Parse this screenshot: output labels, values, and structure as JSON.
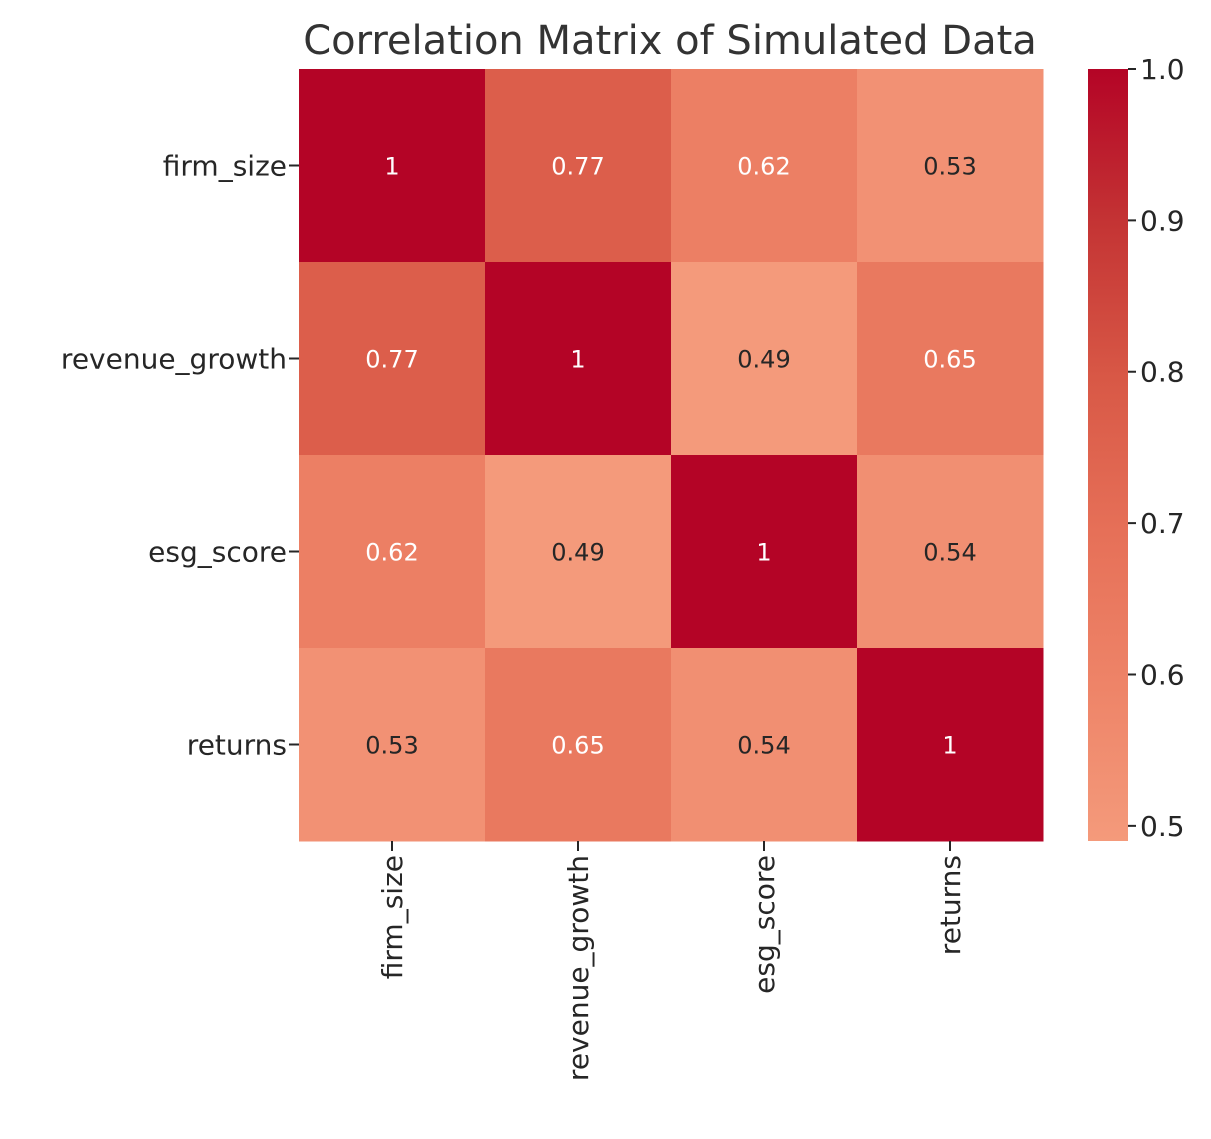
{
  "chart_data": {
    "type": "heatmap",
    "title": "Correlation Matrix of Simulated Data",
    "xlabel": "",
    "ylabel": "",
    "rows": [
      "firm_size",
      "revenue_growth",
      "esg_score",
      "returns"
    ],
    "columns": [
      "firm_size",
      "revenue_growth",
      "esg_score",
      "returns"
    ],
    "values": [
      [
        1.0,
        0.77,
        0.62,
        0.53
      ],
      [
        0.77,
        1.0,
        0.49,
        0.65
      ],
      [
        0.62,
        0.49,
        1.0,
        0.54
      ],
      [
        0.53,
        0.65,
        0.54,
        1.0
      ]
    ],
    "annotations": [
      [
        "1",
        "0.77",
        "0.62",
        "0.53"
      ],
      [
        "0.77",
        "1",
        "0.49",
        "0.65"
      ],
      [
        "0.62",
        "0.49",
        "1",
        "0.54"
      ],
      [
        "0.53",
        "0.65",
        "0.54",
        "1"
      ]
    ],
    "colormap": "coolwarm",
    "vmin": 0.49,
    "vmax": 1.0,
    "colorbar": {
      "ticks": [
        0.5,
        0.6,
        0.7,
        0.8,
        0.9,
        1.0
      ],
      "tick_labels": [
        "0.5",
        "0.6",
        "0.7",
        "0.8",
        "0.9",
        "1.0"
      ]
    }
  }
}
